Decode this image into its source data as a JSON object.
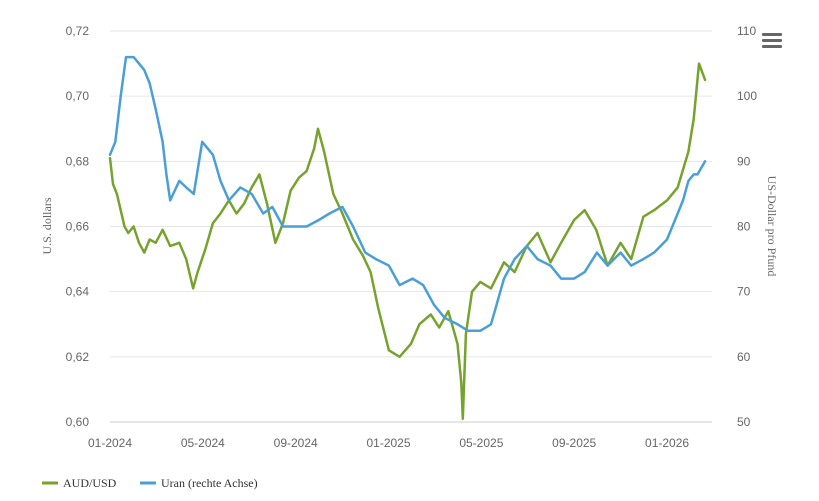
{
  "chart_data": {
    "type": "line",
    "x_ticks": [
      "01-2024",
      "05-2024",
      "09-2024",
      "01-2025",
      "05-2025",
      "09-2025",
      "01-2026"
    ],
    "y_left": {
      "title": "U.S. dollars",
      "ticks": [
        "0,72",
        "0,70",
        "0,68",
        "0,66",
        "0,64",
        "0,62",
        "0,60"
      ],
      "range": [
        0.6,
        0.72
      ]
    },
    "y_right": {
      "title": "US-Dollar pro Pfund",
      "ticks": [
        "110",
        "100",
        "90",
        "80",
        "70",
        "60",
        "50"
      ],
      "range": [
        50,
        110
      ]
    },
    "grid": "horizontal",
    "legend_position": "bottom-left",
    "series": [
      {
        "name": "AUD/USD",
        "color": "#77a22e",
        "axis": "left",
        "x": [
          "2024-01-01",
          "2024-01-05",
          "2024-01-10",
          "2024-01-15",
          "2024-01-20",
          "2024-01-25",
          "2024-02-01",
          "2024-02-08",
          "2024-02-15",
          "2024-02-22",
          "2024-03-01",
          "2024-03-10",
          "2024-03-20",
          "2024-04-01",
          "2024-04-10",
          "2024-04-19",
          "2024-04-25",
          "2024-05-05",
          "2024-05-15",
          "2024-05-25",
          "2024-06-05",
          "2024-06-15",
          "2024-06-25",
          "2024-07-05",
          "2024-07-15",
          "2024-07-25",
          "2024-08-05",
          "2024-08-15",
          "2024-08-25",
          "2024-09-05",
          "2024-09-15",
          "2024-09-25",
          "2024-09-30",
          "2024-10-08",
          "2024-10-20",
          "2024-11-01",
          "2024-11-15",
          "2024-11-28",
          "2024-12-08",
          "2024-12-18",
          "2025-01-01",
          "2025-01-15",
          "2025-01-30",
          "2025-02-10",
          "2025-02-25",
          "2025-03-08",
          "2025-03-20",
          "2025-04-01",
          "2025-04-06",
          "2025-04-08",
          "2025-04-12",
          "2025-04-20",
          "2025-05-01",
          "2025-05-15",
          "2025-06-01",
          "2025-06-15",
          "2025-07-01",
          "2025-07-15",
          "2025-08-01",
          "2025-08-15",
          "2025-09-01",
          "2025-09-15",
          "2025-09-30",
          "2025-10-15",
          "2025-11-01",
          "2025-11-15",
          "2025-12-01",
          "2025-12-15",
          "2026-01-01",
          "2026-01-15",
          "2026-01-29",
          "2026-02-05",
          "2026-02-12",
          "2026-02-20"
        ],
        "values": [
          0.681,
          0.673,
          0.67,
          0.665,
          0.66,
          0.658,
          0.66,
          0.655,
          0.652,
          0.656,
          0.655,
          0.659,
          0.654,
          0.655,
          0.65,
          0.641,
          0.646,
          0.653,
          0.661,
          0.664,
          0.668,
          0.664,
          0.667,
          0.672,
          0.676,
          0.667,
          0.655,
          0.661,
          0.671,
          0.675,
          0.677,
          0.684,
          0.69,
          0.683,
          0.67,
          0.664,
          0.656,
          0.651,
          0.646,
          0.635,
          0.622,
          0.62,
          0.624,
          0.63,
          0.633,
          0.629,
          0.634,
          0.624,
          0.612,
          0.601,
          0.627,
          0.64,
          0.643,
          0.641,
          0.649,
          0.646,
          0.654,
          0.658,
          0.649,
          0.655,
          0.662,
          0.665,
          0.659,
          0.648,
          0.655,
          0.65,
          0.663,
          0.665,
          0.668,
          0.672,
          0.683,
          0.693,
          0.71,
          0.705
        ]
      },
      {
        "name": "Uran (rechte Achse)",
        "color": "#4a9fd5",
        "axis": "right",
        "x": [
          "2024-01-01",
          "2024-01-08",
          "2024-01-15",
          "2024-01-22",
          "2024-02-01",
          "2024-02-08",
          "2024-02-15",
          "2024-02-22",
          "2024-03-01",
          "2024-03-10",
          "2024-03-15",
          "2024-03-20",
          "2024-04-01",
          "2024-04-10",
          "2024-04-20",
          "2024-05-01",
          "2024-05-15",
          "2024-05-25",
          "2024-06-05",
          "2024-06-20",
          "2024-07-05",
          "2024-07-20",
          "2024-08-01",
          "2024-08-15",
          "2024-09-01",
          "2024-09-15",
          "2024-10-01",
          "2024-10-15",
          "2024-11-01",
          "2024-11-15",
          "2024-12-01",
          "2024-12-15",
          "2025-01-01",
          "2025-01-15",
          "2025-02-01",
          "2025-02-15",
          "2025-03-01",
          "2025-03-15",
          "2025-04-01",
          "2025-04-15",
          "2025-05-01",
          "2025-05-15",
          "2025-06-01",
          "2025-06-15",
          "2025-07-01",
          "2025-07-15",
          "2025-08-01",
          "2025-08-15",
          "2025-09-01",
          "2025-09-15",
          "2025-10-01",
          "2025-10-15",
          "2025-11-01",
          "2025-11-15",
          "2025-12-01",
          "2025-12-15",
          "2026-01-01",
          "2026-01-15",
          "2026-01-22",
          "2026-01-29",
          "2026-02-05",
          "2026-02-10",
          "2026-02-20"
        ],
        "values": [
          91,
          93,
          100,
          106,
          106,
          105,
          104,
          102,
          98,
          93,
          88,
          84,
          87,
          86,
          85,
          93,
          91,
          87,
          84,
          86,
          85,
          82,
          83,
          80,
          80,
          80,
          81,
          82,
          83,
          80,
          76,
          75,
          74,
          71,
          72,
          71,
          68,
          66,
          65,
          64,
          64,
          65,
          72,
          75,
          77,
          75,
          74,
          72,
          72,
          73,
          76,
          74,
          76,
          74,
          75,
          76,
          78,
          82,
          84,
          87,
          88,
          88,
          90
        ]
      }
    ]
  }
}
